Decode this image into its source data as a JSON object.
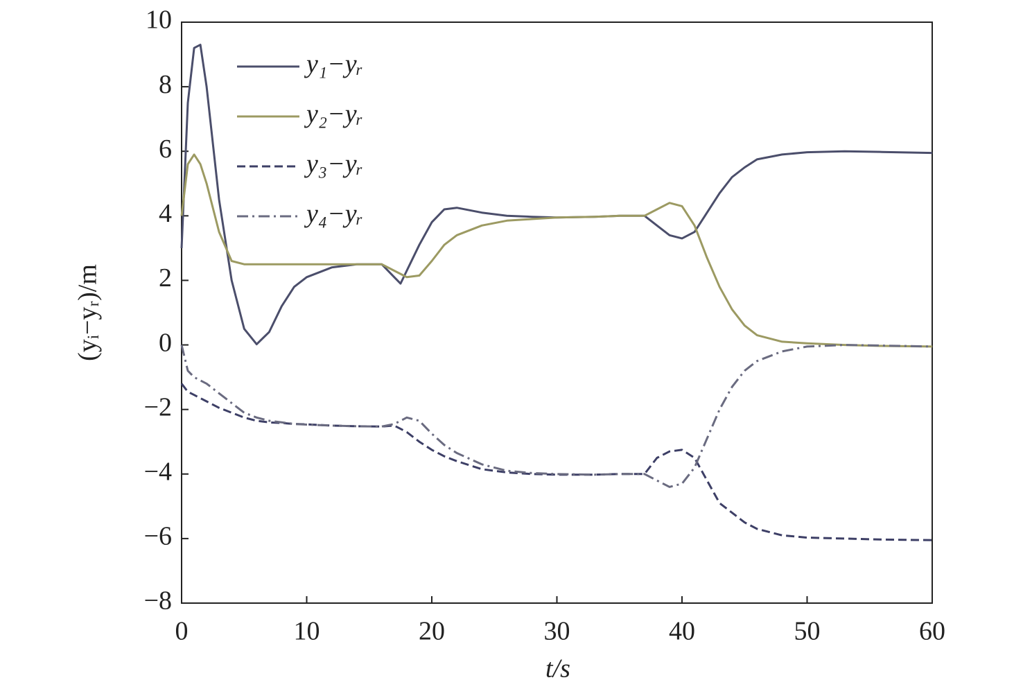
{
  "chart_data": {
    "type": "line",
    "xlabel": "t/s",
    "ylabel": "(yᵢ−yᵣ)/m",
    "x": [
      0,
      0.5,
      1,
      1.5,
      2,
      3,
      4,
      5,
      6,
      7,
      8,
      9,
      10,
      12,
      14,
      16,
      17,
      17.5,
      18,
      19,
      20,
      21,
      22,
      24,
      26,
      28,
      30,
      33,
      35,
      37,
      38,
      39,
      40,
      41,
      42,
      43,
      44,
      45,
      46,
      48,
      50,
      53,
      56,
      60
    ],
    "series": [
      {
        "name": "y₁−yᵣ",
        "color": "#4b4e6b",
        "dash": "solid",
        "values": [
          3,
          7.5,
          9.2,
          9.3,
          8,
          4.5,
          2,
          0.5,
          0.02,
          0.4,
          1.2,
          1.8,
          2.1,
          2.4,
          2.5,
          2.5,
          2.1,
          1.9,
          2.3,
          3.1,
          3.8,
          4.2,
          4.25,
          4.1,
          4.0,
          3.97,
          3.95,
          3.97,
          4.0,
          4.0,
          3.7,
          3.4,
          3.3,
          3.5,
          4.1,
          4.7,
          5.2,
          5.5,
          5.75,
          5.9,
          5.97,
          6.0,
          5.98,
          5.95
        ]
      },
      {
        "name": "y₂−yᵣ",
        "color": "#9c9a62",
        "dash": "solid",
        "values": [
          4,
          5.6,
          5.9,
          5.6,
          5,
          3.5,
          2.6,
          2.5,
          2.5,
          2.5,
          2.5,
          2.5,
          2.5,
          2.5,
          2.5,
          2.5,
          2.3,
          2.2,
          2.1,
          2.15,
          2.6,
          3.1,
          3.4,
          3.7,
          3.85,
          3.9,
          3.95,
          3.97,
          4.0,
          4.0,
          4.2,
          4.4,
          4.3,
          3.7,
          2.7,
          1.8,
          1.1,
          0.6,
          0.3,
          0.1,
          0.05,
          0.0,
          -0.03,
          -0.05
        ]
      },
      {
        "name": "y₃−yᵣ",
        "color": "#3d3f66",
        "dash": "dashed",
        "values": [
          -1.2,
          -1.45,
          -1.55,
          -1.65,
          -1.75,
          -1.95,
          -2.1,
          -2.25,
          -2.35,
          -2.4,
          -2.42,
          -2.45,
          -2.46,
          -2.5,
          -2.52,
          -2.53,
          -2.5,
          -2.6,
          -2.7,
          -3.0,
          -3.25,
          -3.45,
          -3.6,
          -3.85,
          -3.95,
          -4.0,
          -4.02,
          -4.02,
          -4.0,
          -4.0,
          -3.5,
          -3.3,
          -3.25,
          -3.5,
          -4.2,
          -4.9,
          -5.2,
          -5.5,
          -5.7,
          -5.9,
          -5.97,
          -6.0,
          -6.03,
          -6.05
        ]
      },
      {
        "name": "y₄−yᵣ",
        "color": "#6a6b80",
        "dash": "dashdot",
        "values": [
          0,
          -0.8,
          -1.0,
          -1.1,
          -1.2,
          -1.5,
          -1.8,
          -2.1,
          -2.25,
          -2.35,
          -2.4,
          -2.45,
          -2.47,
          -2.5,
          -2.52,
          -2.53,
          -2.45,
          -2.35,
          -2.25,
          -2.35,
          -2.75,
          -3.1,
          -3.35,
          -3.7,
          -3.9,
          -3.97,
          -4.0,
          -4.02,
          -4.0,
          -4.0,
          -4.2,
          -4.4,
          -4.3,
          -3.8,
          -2.9,
          -2.0,
          -1.3,
          -0.8,
          -0.5,
          -0.2,
          -0.05,
          0.0,
          -0.02,
          -0.05
        ]
      }
    ],
    "xlim": [
      0,
      60
    ],
    "xticks": [
      0,
      10,
      20,
      30,
      40,
      50,
      60
    ],
    "ylim": [
      -8,
      10
    ],
    "yticks": [
      {
        "value": -8,
        "label": "−8"
      },
      {
        "value": -6,
        "label": "−6"
      },
      {
        "value": -4,
        "label": "−4"
      },
      {
        "value": -2,
        "label": "−2"
      },
      0,
      2,
      4,
      6,
      8,
      10
    ],
    "grid": false,
    "legend": "upper left"
  }
}
